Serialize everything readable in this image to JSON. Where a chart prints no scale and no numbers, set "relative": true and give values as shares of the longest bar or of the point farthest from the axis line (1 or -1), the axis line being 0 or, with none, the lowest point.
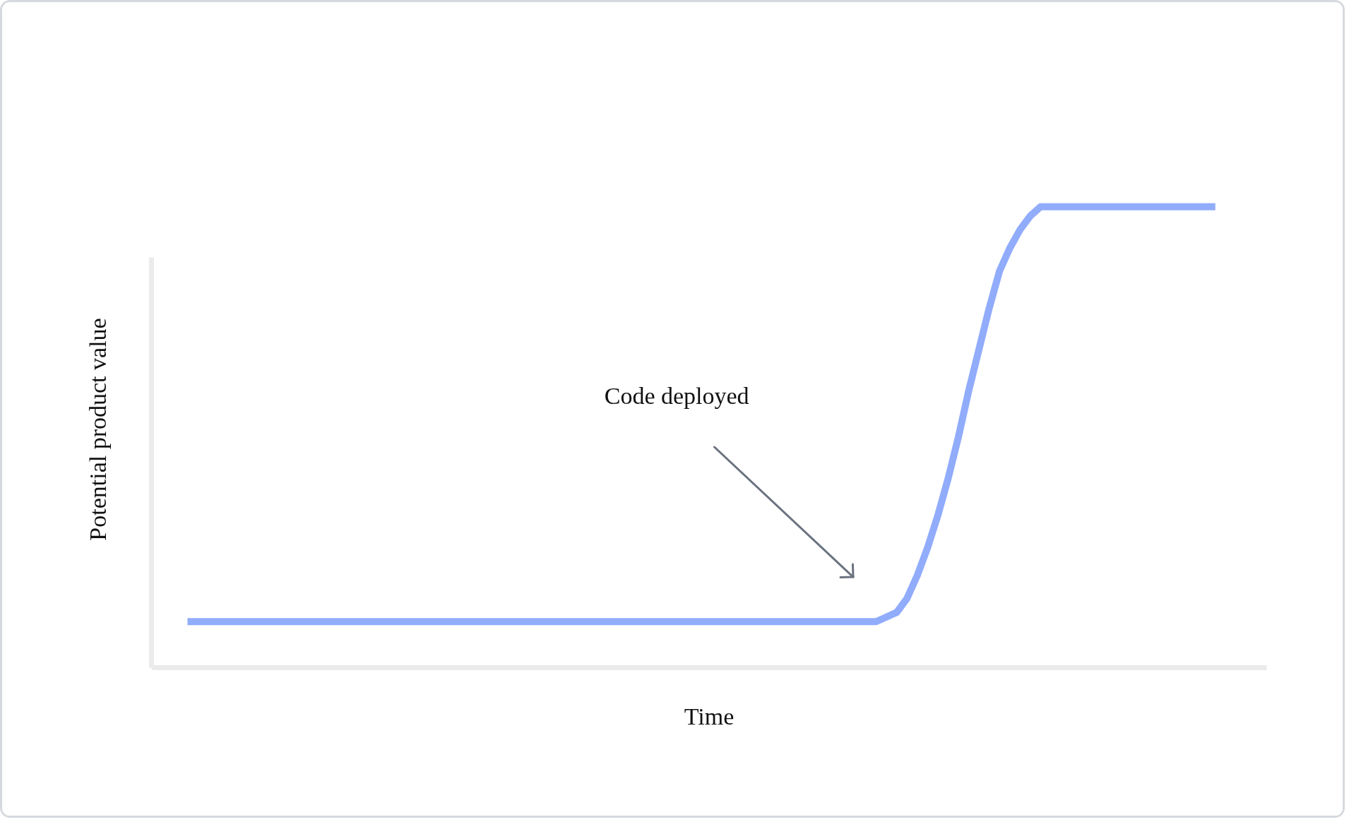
{
  "chart_data": {
    "type": "line",
    "xlabel": "Time",
    "ylabel": "Potential product value",
    "relative": true,
    "categories": [
      null,
      null,
      null,
      null,
      null,
      null,
      null,
      null,
      null,
      null,
      null,
      null,
      null,
      null,
      null,
      null,
      null,
      null,
      null,
      null,
      null,
      null,
      null,
      null,
      null,
      null,
      null,
      null,
      null,
      null,
      null,
      null,
      null,
      null,
      null,
      null,
      null,
      null,
      null,
      null,
      null,
      null,
      null,
      null,
      null,
      null,
      null,
      null,
      null,
      null,
      null,
      null,
      null,
      null,
      null,
      null,
      null,
      null,
      null,
      null,
      null,
      null,
      null,
      null,
      null,
      null,
      null,
      null,
      null,
      null,
      null,
      null,
      null,
      null,
      null,
      null,
      null,
      null,
      null,
      null,
      null,
      null,
      null,
      null,
      null,
      null,
      null,
      null,
      null,
      null,
      null,
      null,
      null,
      null,
      null,
      null,
      null,
      null,
      null,
      null,
      null
    ],
    "series": [
      {
        "color": "#91acfb",
        "values": [
          0.1,
          0.1,
          0.1,
          0.1,
          0.1,
          0.1,
          0.1,
          0.1,
          0.1,
          0.1,
          0.1,
          0.1,
          0.1,
          0.1,
          0.1,
          0.1,
          0.1,
          0.1,
          0.1,
          0.1,
          0.1,
          0.1,
          0.1,
          0.1,
          0.1,
          0.1,
          0.1,
          0.1,
          0.1,
          0.1,
          0.1,
          0.1,
          0.1,
          0.1,
          0.1,
          0.1,
          0.1,
          0.1,
          0.1,
          0.1,
          0.1,
          0.1,
          0.1,
          0.1,
          0.1,
          0.1,
          0.1,
          0.1,
          0.1,
          0.1,
          0.1,
          0.1,
          0.1,
          0.1,
          0.1,
          0.1,
          0.1,
          0.1,
          0.1,
          0.1,
          0.1,
          0.1,
          0.1,
          0.1,
          0.1,
          0.1,
          0.1,
          0.1,
          0.11,
          0.12,
          0.15,
          0.2,
          0.26,
          0.33,
          0.41,
          0.5,
          0.6,
          0.69,
          0.78,
          0.86,
          0.91,
          0.95,
          0.98,
          1,
          1,
          1,
          1,
          1,
          1,
          1,
          1,
          1,
          1,
          1,
          1,
          1,
          1,
          1,
          1,
          1,
          1
        ]
      }
    ],
    "annotations": [
      "Code deployed"
    ]
  }
}
